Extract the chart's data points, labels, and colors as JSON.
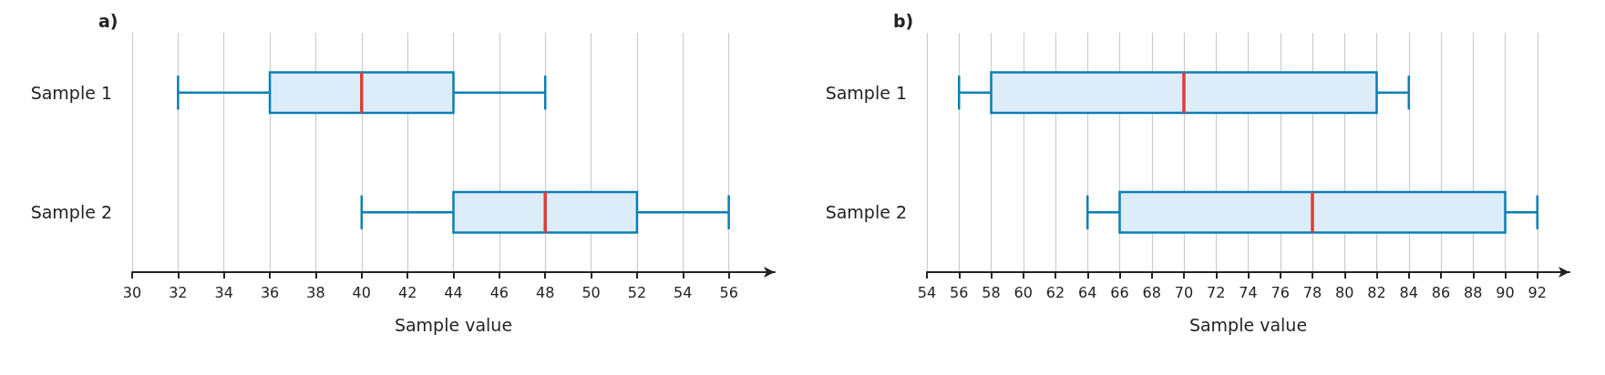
{
  "chart_data": [
    {
      "type": "box",
      "title": "a)",
      "orientation": "horizontal",
      "categories": [
        "Sample 1",
        "Sample 2"
      ],
      "xlabel": "Sample value",
      "xlim": [
        30,
        58
      ],
      "xticks": [
        30,
        32,
        34,
        36,
        38,
        40,
        42,
        44,
        46,
        48,
        50,
        52,
        54,
        56
      ],
      "grid": "x",
      "series": [
        {
          "color": "#0a7fb5",
          "boxes": [
            {
              "low": 32,
              "q1": 36,
              "median": 40,
              "q3": 44,
              "high": 48
            },
            {
              "low": 40,
              "q1": 44,
              "median": 48,
              "q3": 52,
              "high": 56
            }
          ]
        }
      ]
    },
    {
      "type": "box",
      "title": "b)",
      "orientation": "horizontal",
      "categories": [
        "Sample 1",
        "Sample 2"
      ],
      "xlabel": "Sample value",
      "xlim": [
        54,
        94
      ],
      "xticks": [
        54,
        56,
        58,
        60,
        62,
        64,
        66,
        68,
        70,
        72,
        74,
        76,
        78,
        80,
        82,
        84,
        86,
        88,
        90,
        92
      ],
      "grid": "x",
      "series": [
        {
          "color": "#0a7fb5",
          "boxes": [
            {
              "low": 56,
              "q1": 58,
              "median": 70,
              "q3": 82,
              "high": 84
            },
            {
              "low": 64,
              "q1": 66,
              "median": 78,
              "q3": 90,
              "high": 92
            }
          ]
        }
      ]
    }
  ]
}
